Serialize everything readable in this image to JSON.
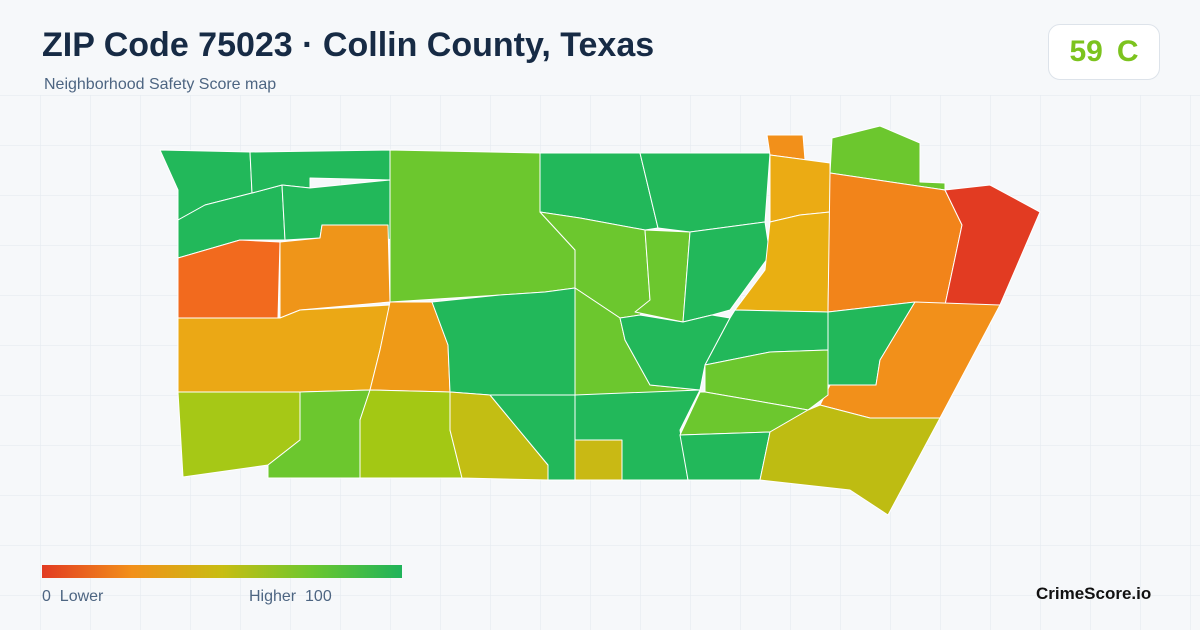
{
  "header": {
    "title": "ZIP Code 75023 · Collin County, Texas",
    "subtitle": "Neighborhood Safety Score map",
    "score": 59,
    "grade": "C"
  },
  "legend": {
    "min": 0,
    "low_label": "Lower",
    "high_label": "Higher",
    "max": 100
  },
  "footer": {
    "brand": "CrimeScore.io"
  }
}
